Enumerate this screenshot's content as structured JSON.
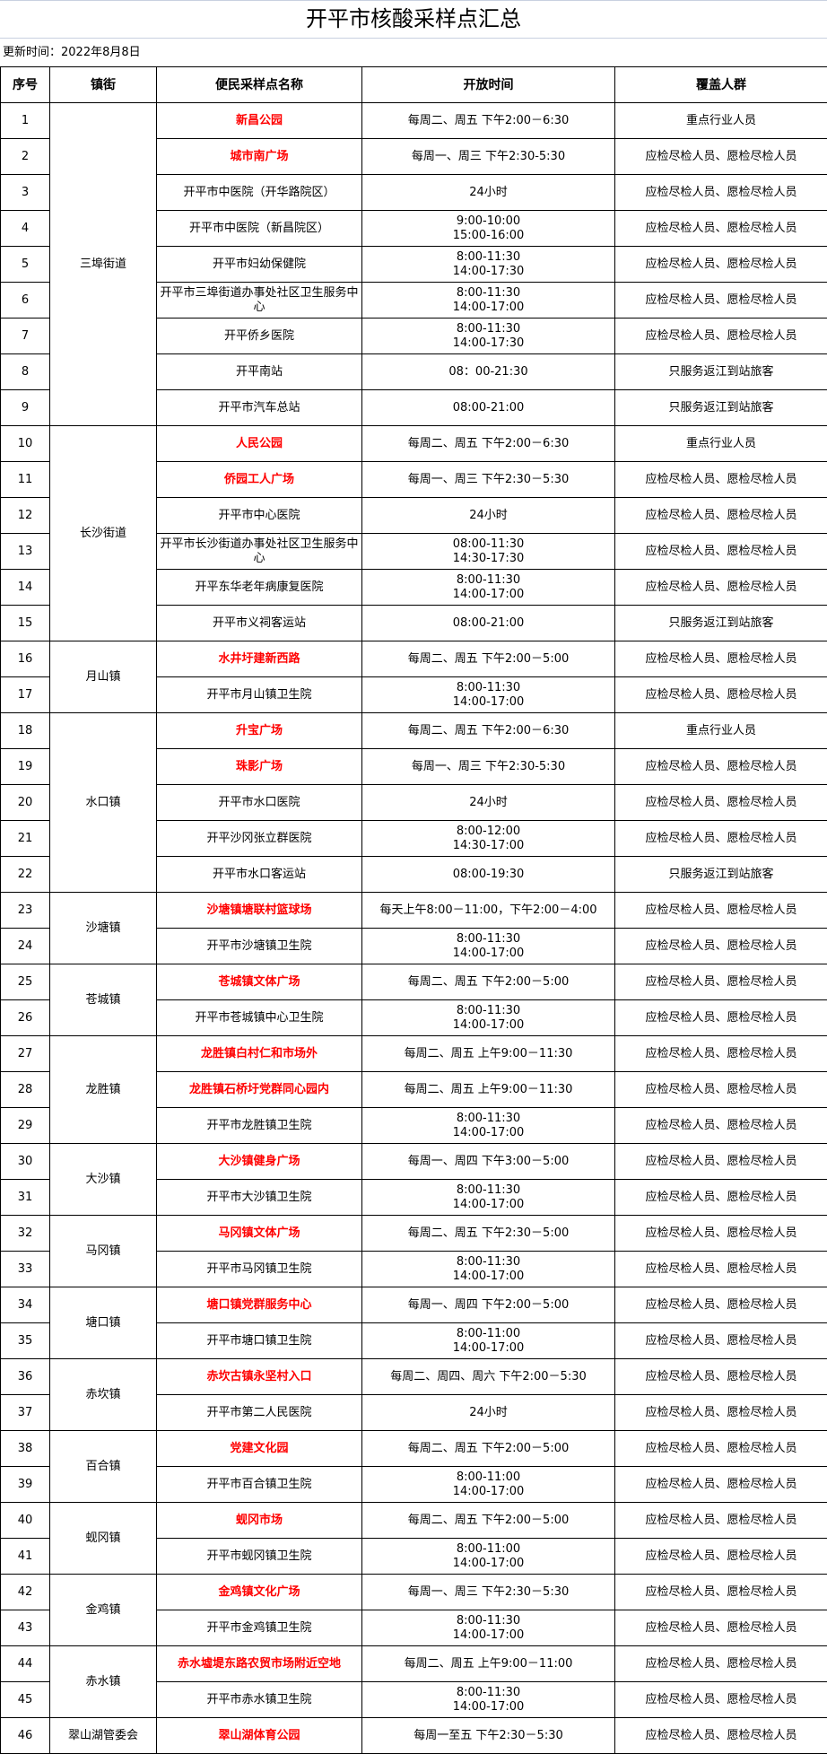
{
  "title": "开平市核酸采样点汇总",
  "update": "更新时间：2022年8月8日",
  "headers": [
    "序号",
    "镇街",
    "便民采样点名称",
    "开放时间",
    "覆盖人群"
  ],
  "colors": {
    "highlight": "#ff0000"
  },
  "towns": [
    {
      "name": "三埠街道",
      "sites": [
        {
          "no": "1",
          "name": "新昌公园",
          "hours": [
            "每周二、周五 下午2:00－6:30"
          ],
          "crowd": "重点行业人员",
          "highlight": true
        },
        {
          "no": "2",
          "name": "城市南广场",
          "hours": [
            "每周一、周三 下午2:30-5:30"
          ],
          "crowd": "应检尽检人员、愿检尽检人员",
          "highlight": true
        },
        {
          "no": "3",
          "name": "开平市中医院（开华路院区）",
          "hours": [
            "24小时"
          ],
          "crowd": "应检尽检人员、愿检尽检人员"
        },
        {
          "no": "4",
          "name": "开平市中医院（新昌院区）",
          "hours": [
            "9:00-10:00",
            "15:00-16:00"
          ],
          "crowd": "应检尽检人员、愿检尽检人员"
        },
        {
          "no": "5",
          "name": "开平市妇幼保健院",
          "hours": [
            "8:00-11:30",
            "14:00-17:30"
          ],
          "crowd": "应检尽检人员、愿检尽检人员"
        },
        {
          "no": "6",
          "name": "开平市三埠街道办事处社区卫生服务中心",
          "hours": [
            "8:00-11:30",
            "14:00-17:00"
          ],
          "crowd": "应检尽检人员、愿检尽检人员"
        },
        {
          "no": "7",
          "name": "开平侨乡医院",
          "hours": [
            "8:00-11:30",
            "14:00-17:30"
          ],
          "crowd": "应检尽检人员、愿检尽检人员"
        },
        {
          "no": "8",
          "name": "开平南站",
          "hours": [
            "08：00-21:30"
          ],
          "crowd": "只服务返江到站旅客"
        },
        {
          "no": "9",
          "name": "开平市汽车总站",
          "hours": [
            "08:00-21:00"
          ],
          "crowd": "只服务返江到站旅客"
        }
      ]
    },
    {
      "name": "长沙街道",
      "sites": [
        {
          "no": "10",
          "name": "人民公园",
          "hours": [
            "每周二、周五 下午2:00－6:30"
          ],
          "crowd": "重点行业人员",
          "highlight": true
        },
        {
          "no": "11",
          "name": "侨园工人广场",
          "hours": [
            "每周一、周三 下午2:30－5:30"
          ],
          "crowd": "应检尽检人员、愿检尽检人员",
          "highlight": true
        },
        {
          "no": "12",
          "name": "开平市中心医院",
          "hours": [
            "24小时"
          ],
          "crowd": "应检尽检人员、愿检尽检人员"
        },
        {
          "no": "13",
          "name": "开平市长沙街道办事处社区卫生服务中心",
          "hours": [
            "08:00-11:30",
            "14:30-17:30"
          ],
          "crowd": "应检尽检人员、愿检尽检人员"
        },
        {
          "no": "14",
          "name": "开平东华老年病康复医院",
          "hours": [
            "8:00-11:30",
            "14:00-17:00"
          ],
          "crowd": "应检尽检人员、愿检尽检人员"
        },
        {
          "no": "15",
          "name": "开平市义祠客运站",
          "hours": [
            "08:00-21:00"
          ],
          "crowd": "只服务返江到站旅客"
        }
      ]
    },
    {
      "name": "月山镇",
      "sites": [
        {
          "no": "16",
          "name": "水井圩建新西路",
          "hours": [
            "每周二、周五 下午2:00－5:00"
          ],
          "crowd": "应检尽检人员、愿检尽检人员",
          "highlight": true
        },
        {
          "no": "17",
          "name": "开平市月山镇卫生院",
          "hours": [
            "8:00-11:30",
            "14:00-17:00"
          ],
          "crowd": "应检尽检人员、愿检尽检人员"
        }
      ]
    },
    {
      "name": "水口镇",
      "sites": [
        {
          "no": "18",
          "name": "升宝广场",
          "hours": [
            "每周二、周五 下午2:00－6:30"
          ],
          "crowd": "重点行业人员",
          "highlight": true
        },
        {
          "no": "19",
          "name": "珠影广场",
          "hours": [
            "每周一、周三 下午2:30-5:30"
          ],
          "crowd": "应检尽检人员、愿检尽检人员",
          "highlight": true
        },
        {
          "no": "20",
          "name": "开平市水口医院",
          "hours": [
            "24小时"
          ],
          "crowd": "应检尽检人员、愿检尽检人员"
        },
        {
          "no": "21",
          "name": "开平沙冈张立群医院",
          "hours": [
            "8:00-12:00",
            "14:30-17:00"
          ],
          "crowd": "应检尽检人员、愿检尽检人员"
        },
        {
          "no": "22",
          "name": "开平市水口客运站",
          "hours": [
            "08:00-19:30"
          ],
          "crowd": "只服务返江到站旅客"
        }
      ]
    },
    {
      "name": "沙塘镇",
      "sites": [
        {
          "no": "23",
          "name": "沙塘镇塘联村篮球场",
          "hours": [
            "每天上午8:00－11:00，下午2:00－4:00"
          ],
          "crowd": "应检尽检人员、愿检尽检人员",
          "highlight": true
        },
        {
          "no": "24",
          "name": "开平市沙塘镇卫生院",
          "hours": [
            "8:00-11:30",
            "14:00-17:00"
          ],
          "crowd": "应检尽检人员、愿检尽检人员"
        }
      ]
    },
    {
      "name": "苍城镇",
      "sites": [
        {
          "no": "25",
          "name": "苍城镇文体广场",
          "hours": [
            "每周二、周五 下午2:00－5:00"
          ],
          "crowd": "应检尽检人员、愿检尽检人员",
          "highlight": true
        },
        {
          "no": "26",
          "name": "开平市苍城镇中心卫生院",
          "hours": [
            "8:00-11:30",
            "14:00-17:00"
          ],
          "crowd": "应检尽检人员、愿检尽检人员"
        }
      ]
    },
    {
      "name": "龙胜镇",
      "sites": [
        {
          "no": "27",
          "name": "龙胜镇白村仁和市场外",
          "hours": [
            "每周二、周五 上午9:00－11:30"
          ],
          "crowd": "应检尽检人员、愿检尽检人员",
          "highlight": true
        },
        {
          "no": "28",
          "name": "龙胜镇石桥圩党群同心园内",
          "hours": [
            "每周二、周五 上午9:00－11:30"
          ],
          "crowd": "应检尽检人员、愿检尽检人员",
          "highlight": true
        },
        {
          "no": "29",
          "name": "开平市龙胜镇卫生院",
          "hours": [
            "8:00-11:30",
            "14:00-17:00"
          ],
          "crowd": "应检尽检人员、愿检尽检人员"
        }
      ]
    },
    {
      "name": "大沙镇",
      "sites": [
        {
          "no": "30",
          "name": "大沙镇健身广场",
          "hours": [
            "每周一、周四 下午3:00－5:00"
          ],
          "crowd": "应检尽检人员、愿检尽检人员",
          "highlight": true
        },
        {
          "no": "31",
          "name": "开平市大沙镇卫生院",
          "hours": [
            "8:00-11:30",
            "14:00-17:00"
          ],
          "crowd": "应检尽检人员、愿检尽检人员"
        }
      ]
    },
    {
      "name": "马冈镇",
      "sites": [
        {
          "no": "32",
          "name": "马冈镇文体广场",
          "hours": [
            "每周二、周五 下午2:30－5:00"
          ],
          "crowd": "应检尽检人员、愿检尽检人员",
          "highlight": true
        },
        {
          "no": "33",
          "name": "开平市马冈镇卫生院",
          "hours": [
            "8:00-11:30",
            "14:00-17:00"
          ],
          "crowd": "应检尽检人员、愿检尽检人员"
        }
      ]
    },
    {
      "name": "塘口镇",
      "sites": [
        {
          "no": "34",
          "name": "塘口镇党群服务中心",
          "hours": [
            "每周一、周四 下午2:00－5:00"
          ],
          "crowd": "应检尽检人员、愿检尽检人员",
          "highlight": true
        },
        {
          "no": "35",
          "name": "开平市塘口镇卫生院",
          "hours": [
            "8:00-11:00",
            "14:00-17:00"
          ],
          "crowd": "应检尽检人员、愿检尽检人员"
        }
      ]
    },
    {
      "name": "赤坎镇",
      "sites": [
        {
          "no": "36",
          "name": "赤坎古镇永坚村入口",
          "hours": [
            "每周二、周四、周六 下午2:00－5:30"
          ],
          "crowd": "应检尽检人员、愿检尽检人员",
          "highlight": true
        },
        {
          "no": "37",
          "name": "开平市第二人民医院",
          "hours": [
            "24小时"
          ],
          "crowd": "应检尽检人员、愿检尽检人员"
        }
      ]
    },
    {
      "name": "百合镇",
      "sites": [
        {
          "no": "38",
          "name": "党建文化园",
          "hours": [
            "每周二、周五 下午2:00－5:00"
          ],
          "crowd": "应检尽检人员、愿检尽检人员",
          "highlight": true
        },
        {
          "no": "39",
          "name": "开平市百合镇卫生院",
          "hours": [
            "8:00-11:00",
            "14:00-17:00"
          ],
          "crowd": "应检尽检人员、愿检尽检人员"
        }
      ]
    },
    {
      "name": "蚬冈镇",
      "sites": [
        {
          "no": "40",
          "name": "蚬冈市场",
          "hours": [
            "每周二、周五 下午2:00－5:00"
          ],
          "crowd": "应检尽检人员、愿检尽检人员",
          "highlight": true
        },
        {
          "no": "41",
          "name": "开平市蚬冈镇卫生院",
          "hours": [
            "8:00-11:00",
            "14:00-17:00"
          ],
          "crowd": "应检尽检人员、愿检尽检人员"
        }
      ]
    },
    {
      "name": "金鸡镇",
      "sites": [
        {
          "no": "42",
          "name": "金鸡镇文化广场",
          "hours": [
            "每周一、周三 下午2:30－5:30"
          ],
          "crowd": "应检尽检人员、愿检尽检人员",
          "highlight": true
        },
        {
          "no": "43",
          "name": "开平市金鸡镇卫生院",
          "hours": [
            "8:00-11:30",
            "14:00-17:00"
          ],
          "crowd": "应检尽检人员、愿检尽检人员"
        }
      ]
    },
    {
      "name": "赤水镇",
      "sites": [
        {
          "no": "44",
          "name": "赤水墟堤东路农贸市场附近空地",
          "hours": [
            "每周二、周五 上午9:00－11:00"
          ],
          "crowd": "应检尽检人员、愿检尽检人员",
          "highlight": true
        },
        {
          "no": "45",
          "name": "开平市赤水镇卫生院",
          "hours": [
            "8:00-11:30",
            "14:00-17:00"
          ],
          "crowd": "应检尽检人员、愿检尽检人员"
        }
      ]
    },
    {
      "name": "翠山湖管委会",
      "sites": [
        {
          "no": "46",
          "name": "翠山湖体育公园",
          "hours": [
            "每周一至五 下午2:30－5:30"
          ],
          "crowd": "应检尽检人员、愿检尽检人员",
          "highlight": true
        }
      ]
    }
  ]
}
